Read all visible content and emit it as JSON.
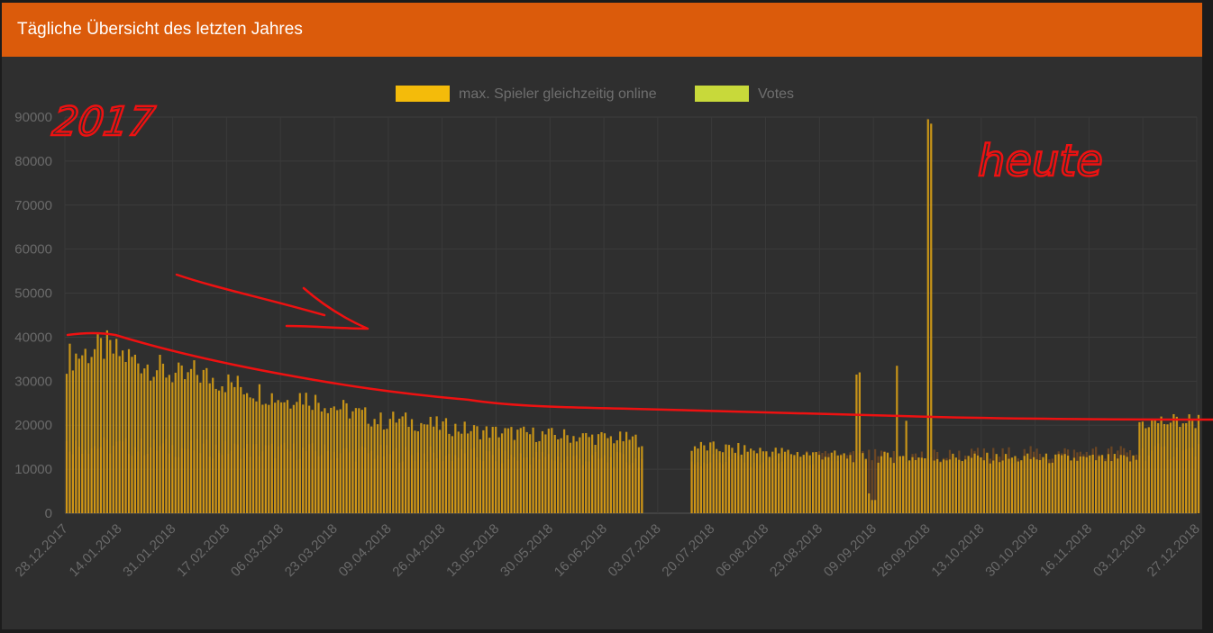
{
  "panel": {
    "title": "Tägliche Übersicht des letzten Jahres"
  },
  "colors": {
    "header": "#db5b0b",
    "panel_bg": "#2f2f2f",
    "players": "#f4bb0a",
    "votes": "#c8d93a",
    "annotation": "#ee1111"
  },
  "annotations": {
    "left_text": "2017",
    "right_text": "heute",
    "trend_arrow": "arrow-down-right"
  },
  "chart_data": {
    "type": "bar",
    "legend_position": "top-center",
    "grid": true,
    "ylim": [
      0,
      90000
    ],
    "y_ticks": [
      "0",
      "10000",
      "20000",
      "30000",
      "40000",
      "50000",
      "60000",
      "70000",
      "80000",
      "90000"
    ],
    "x_tick_labels": [
      "28.12.2017",
      "14.01.2018",
      "31.01.2018",
      "17.02.2018",
      "06.03.2018",
      "23.03.2018",
      "09.04.2018",
      "26.04.2018",
      "13.05.2018",
      "30.05.2018",
      "16.06.2018",
      "03.07.2018",
      "20.07.2018",
      "06.08.2018",
      "23.08.2018",
      "09.09.2018",
      "26.09.2018",
      "13.10.2018",
      "30.10.2018",
      "16.11.2018",
      "03.12.2018",
      "27.12.2018"
    ],
    "x_range": [
      "2017-12-28",
      "2018-12-27"
    ],
    "series": [
      {
        "name": "max. Spieler gleichzeitig online",
        "segments": [
          {
            "from": "2017-12-28",
            "to": "2018-01-10",
            "start": 36000,
            "end": 38500
          },
          {
            "from": "2018-01-10",
            "to": "2018-02-05",
            "start": 38000,
            "end": 31000
          },
          {
            "from": "2018-02-05",
            "to": "2018-03-10",
            "start": 33000,
            "end": 26000
          },
          {
            "from": "2018-03-10",
            "to": "2018-04-10",
            "start": 28000,
            "end": 21000
          },
          {
            "from": "2018-04-10",
            "to": "2018-05-10",
            "start": 22000,
            "end": 19000
          },
          {
            "from": "2018-05-10",
            "to": "2018-07-01",
            "start": 19000,
            "end": 17000
          }
        ],
        "gap": [
          "2018-07-02",
          "2018-07-16"
        ],
        "after_gap": [
          {
            "from": "2018-07-17",
            "to": "2018-09-08",
            "start": 15500,
            "end": 13000
          },
          {
            "from": "2018-09-08",
            "to": "2018-12-07",
            "start": 13000,
            "end": 12500
          },
          {
            "from": "2018-12-08",
            "to": "2018-12-27",
            "start": 21000,
            "end": 21500
          }
        ],
        "spikes": [
          {
            "date": "2018-09-08",
            "value": 31500
          },
          {
            "date": "2018-09-09",
            "value": 32000
          },
          {
            "date": "2018-09-21",
            "value": 33500
          },
          {
            "date": "2018-09-24",
            "value": 21000
          },
          {
            "date": "2018-10-01",
            "value": 89500
          },
          {
            "date": "2018-10-02",
            "value": 88500
          },
          {
            "date": "2018-09-12",
            "value": 4500
          },
          {
            "date": "2018-09-13",
            "value": 3000
          },
          {
            "date": "2018-09-14",
            "value": 3000
          }
        ]
      },
      {
        "name": "Votes",
        "segments": [
          {
            "from": "2017-12-28",
            "to": "2018-07-01",
            "start": 15500,
            "end": 12000
          },
          {
            "from": "2018-07-17",
            "to": "2018-12-27",
            "start": 12000,
            "end": 14000
          }
        ]
      }
    ]
  }
}
